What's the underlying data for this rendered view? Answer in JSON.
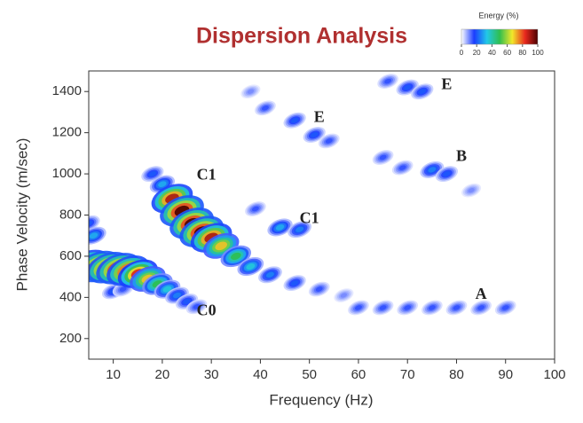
{
  "chart_data": {
    "type": "contour",
    "title": "Dispersion Analysis",
    "xlabel": "Frequency (Hz)",
    "ylabel": "Phase Velocity (m/sec)",
    "xlim": [
      5,
      100
    ],
    "xticks": [
      10,
      20,
      30,
      40,
      50,
      60,
      70,
      80,
      90,
      100
    ],
    "ylim": [
      100,
      1500
    ],
    "yticks": [
      200,
      400,
      600,
      800,
      1000,
      1200,
      1400
    ],
    "x": [
      5,
      6,
      10,
      12,
      5,
      7,
      9,
      11,
      13,
      15,
      17,
      19,
      21,
      23,
      25,
      27,
      18,
      20,
      22,
      24,
      26,
      28,
      30,
      32,
      35,
      38,
      42,
      47,
      52,
      57,
      39,
      44,
      48,
      60,
      65,
      70,
      75,
      80,
      85,
      90,
      38,
      41,
      47,
      51,
      54,
      66,
      70,
      73,
      65,
      69,
      75,
      78,
      83
    ],
    "y": [
      760,
      700,
      430,
      440,
      560,
      550,
      545,
      540,
      530,
      515,
      490,
      465,
      440,
      410,
      380,
      355,
      1000,
      950,
      880,
      820,
      760,
      720,
      690,
      650,
      600,
      550,
      510,
      470,
      440,
      410,
      830,
      740,
      730,
      350,
      350,
      350,
      350,
      350,
      350,
      350,
      1400,
      1320,
      1260,
      1190,
      1160,
      1450,
      1420,
      1400,
      1080,
      1030,
      1020,
      1000,
      920
    ],
    "values": [
      20,
      30,
      20,
      15,
      90,
      100,
      100,
      100,
      95,
      85,
      70,
      50,
      35,
      25,
      20,
      15,
      20,
      30,
      90,
      100,
      100,
      100,
      90,
      70,
      50,
      35,
      25,
      20,
      15,
      10,
      15,
      30,
      25,
      15,
      15,
      15,
      15,
      15,
      15,
      15,
      10,
      15,
      20,
      20,
      15,
      15,
      20,
      20,
      15,
      15,
      25,
      20,
      10
    ],
    "colorbar": {
      "label": "Energy (%)",
      "clim": [
        0,
        100
      ],
      "ticks": [
        0,
        20,
        40,
        60,
        80,
        100
      ],
      "colors": [
        "#ffffff",
        "#1a3cff",
        "#22c8e8",
        "#2fbf4f",
        "#f2e82a",
        "#e8281e",
        "#4a0000"
      ]
    },
    "annotations": [
      {
        "text": "E",
        "x": 52,
        "y": 1270
      },
      {
        "text": "E",
        "x": 78,
        "y": 1430
      },
      {
        "text": "B",
        "x": 81,
        "y": 1080
      },
      {
        "text": "C1",
        "x": 29,
        "y": 990
      },
      {
        "text": "C1",
        "x": 50,
        "y": 780
      },
      {
        "text": "A",
        "x": 85,
        "y": 410
      },
      {
        "text": "C0",
        "x": 29,
        "y": 330
      }
    ]
  }
}
